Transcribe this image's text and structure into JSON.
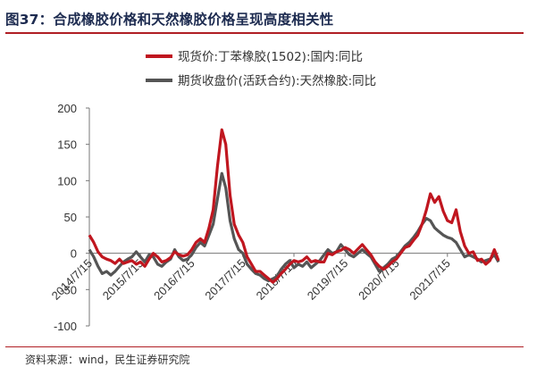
{
  "header": {
    "title": "图37：合成橡胶价格和天然橡胶价格呈现高度相关性"
  },
  "footer": {
    "source": "资料来源：wind，民生证券研究院"
  },
  "colors": {
    "series_1": "#c0161f",
    "series_2": "#555555",
    "accent": "#b01e24"
  },
  "chart_data": {
    "type": "line",
    "title": "",
    "xlabel": "",
    "ylabel": "",
    "ylim": [
      -100,
      200
    ],
    "yticks": [
      -100,
      -50,
      0,
      50,
      100,
      150,
      200
    ],
    "xlim": [
      "2014-07-15",
      "2022-07-15"
    ],
    "xticks": [
      "2014/7/15",
      "2015/7/15",
      "2016/7/15",
      "2017/7/15",
      "2018/7/15",
      "2019/7/15",
      "2020/7/15",
      "2021/7/15"
    ],
    "grid": false,
    "legend_position": "top",
    "series": [
      {
        "name": "现货价:丁苯橡胶(1502):国内:同比",
        "color": "#c0161f",
        "points": [
          [
            "2014-07-15",
            25
          ],
          [
            "2014-08-15",
            15
          ],
          [
            "2014-09-15",
            2
          ],
          [
            "2014-10-15",
            -5
          ],
          [
            "2014-11-15",
            -8
          ],
          [
            "2014-12-15",
            -10
          ],
          [
            "2015-01-15",
            -14
          ],
          [
            "2015-02-15",
            -8
          ],
          [
            "2015-03-15",
            -14
          ],
          [
            "2015-04-15",
            -12
          ],
          [
            "2015-05-15",
            -10
          ],
          [
            "2015-06-15",
            -15
          ],
          [
            "2015-07-15",
            -12
          ],
          [
            "2015-08-15",
            -18
          ],
          [
            "2015-09-15",
            -8
          ],
          [
            "2015-10-15",
            0
          ],
          [
            "2015-11-15",
            -5
          ],
          [
            "2015-12-15",
            -12
          ],
          [
            "2016-01-15",
            -10
          ],
          [
            "2016-02-15",
            -6
          ],
          [
            "2016-03-15",
            2
          ],
          [
            "2016-04-15",
            -2
          ],
          [
            "2016-05-15",
            -4
          ],
          [
            "2016-06-15",
            -2
          ],
          [
            "2016-07-15",
            5
          ],
          [
            "2016-08-15",
            15
          ],
          [
            "2016-09-15",
            20
          ],
          [
            "2016-10-15",
            15
          ],
          [
            "2016-11-15",
            35
          ],
          [
            "2016-12-15",
            60
          ],
          [
            "2017-01-15",
            120
          ],
          [
            "2017-02-15",
            170
          ],
          [
            "2017-03-15",
            150
          ],
          [
            "2017-04-15",
            80
          ],
          [
            "2017-05-15",
            40
          ],
          [
            "2017-06-15",
            25
          ],
          [
            "2017-07-15",
            15
          ],
          [
            "2017-08-15",
            -5
          ],
          [
            "2017-09-15",
            -15
          ],
          [
            "2017-10-15",
            -25
          ],
          [
            "2017-11-15",
            -25
          ],
          [
            "2017-12-15",
            -30
          ],
          [
            "2018-01-15",
            -35
          ],
          [
            "2018-02-15",
            -40
          ],
          [
            "2018-03-15",
            -35
          ],
          [
            "2018-04-15",
            -28
          ],
          [
            "2018-05-15",
            -22
          ],
          [
            "2018-06-15",
            -15
          ],
          [
            "2018-07-15",
            -10
          ],
          [
            "2018-08-15",
            -12
          ],
          [
            "2018-09-15",
            -10
          ],
          [
            "2018-10-15",
            -5
          ],
          [
            "2018-11-15",
            -12
          ],
          [
            "2018-12-15",
            -10
          ],
          [
            "2019-01-15",
            -12
          ],
          [
            "2019-02-15",
            -12
          ],
          [
            "2019-03-15",
            0
          ],
          [
            "2019-04-15",
            -2
          ],
          [
            "2019-05-15",
            2
          ],
          [
            "2019-06-15",
            4
          ],
          [
            "2019-07-15",
            8
          ],
          [
            "2019-08-15",
            5
          ],
          [
            "2019-09-15",
            0
          ],
          [
            "2019-10-15",
            6
          ],
          [
            "2019-11-15",
            12
          ],
          [
            "2019-12-15",
            5
          ],
          [
            "2020-01-15",
            -2
          ],
          [
            "2020-02-15",
            -12
          ],
          [
            "2020-03-15",
            -18
          ],
          [
            "2020-04-15",
            -22
          ],
          [
            "2020-05-15",
            -18
          ],
          [
            "2020-06-15",
            -12
          ],
          [
            "2020-07-15",
            -8
          ],
          [
            "2020-08-15",
            0
          ],
          [
            "2020-09-15",
            8
          ],
          [
            "2020-10-15",
            10
          ],
          [
            "2020-11-15",
            18
          ],
          [
            "2020-12-15",
            25
          ],
          [
            "2021-01-15",
            40
          ],
          [
            "2021-02-15",
            60
          ],
          [
            "2021-03-15",
            82
          ],
          [
            "2021-04-15",
            70
          ],
          [
            "2021-05-15",
            78
          ],
          [
            "2021-06-15",
            58
          ],
          [
            "2021-07-15",
            45
          ],
          [
            "2021-08-15",
            42
          ],
          [
            "2021-09-15",
            60
          ],
          [
            "2021-10-15",
            30
          ],
          [
            "2021-11-15",
            10
          ],
          [
            "2021-12-15",
            0
          ],
          [
            "2022-01-15",
            2
          ],
          [
            "2022-02-15",
            -10
          ],
          [
            "2022-03-15",
            -8
          ],
          [
            "2022-04-15",
            -15
          ],
          [
            "2022-05-15",
            -10
          ],
          [
            "2022-06-15",
            5
          ],
          [
            "2022-07-15",
            -10
          ]
        ]
      },
      {
        "name": "期货收盘价(活跃合约):天然橡胶:同比",
        "color": "#555555",
        "points": [
          [
            "2014-07-15",
            5
          ],
          [
            "2014-08-15",
            -5
          ],
          [
            "2014-09-15",
            -18
          ],
          [
            "2014-10-15",
            -28
          ],
          [
            "2014-11-15",
            -25
          ],
          [
            "2014-12-15",
            -30
          ],
          [
            "2015-01-15",
            -25
          ],
          [
            "2015-02-15",
            -18
          ],
          [
            "2015-03-15",
            -12
          ],
          [
            "2015-04-15",
            -8
          ],
          [
            "2015-05-15",
            -5
          ],
          [
            "2015-06-15",
            2
          ],
          [
            "2015-07-15",
            -5
          ],
          [
            "2015-08-15",
            -12
          ],
          [
            "2015-09-15",
            -2
          ],
          [
            "2015-10-15",
            -5
          ],
          [
            "2015-11-15",
            -15
          ],
          [
            "2015-12-15",
            -18
          ],
          [
            "2016-01-15",
            -12
          ],
          [
            "2016-02-15",
            -8
          ],
          [
            "2016-03-15",
            5
          ],
          [
            "2016-04-15",
            -5
          ],
          [
            "2016-05-15",
            -10
          ],
          [
            "2016-06-15",
            -8
          ],
          [
            "2016-07-15",
            -2
          ],
          [
            "2016-08-15",
            8
          ],
          [
            "2016-09-15",
            15
          ],
          [
            "2016-10-15",
            10
          ],
          [
            "2016-11-15",
            25
          ],
          [
            "2016-12-15",
            40
          ],
          [
            "2017-01-15",
            75
          ],
          [
            "2017-02-15",
            110
          ],
          [
            "2017-03-15",
            90
          ],
          [
            "2017-04-15",
            45
          ],
          [
            "2017-05-15",
            20
          ],
          [
            "2017-06-15",
            5
          ],
          [
            "2017-07-15",
            0
          ],
          [
            "2017-08-15",
            -15
          ],
          [
            "2017-09-15",
            -22
          ],
          [
            "2017-10-15",
            -28
          ],
          [
            "2017-11-15",
            -30
          ],
          [
            "2017-12-15",
            -35
          ],
          [
            "2018-01-15",
            -38
          ],
          [
            "2018-02-15",
            -35
          ],
          [
            "2018-03-15",
            -32
          ],
          [
            "2018-04-15",
            -22
          ],
          [
            "2018-05-15",
            -15
          ],
          [
            "2018-06-15",
            -10
          ],
          [
            "2018-07-15",
            -20
          ],
          [
            "2018-08-15",
            -15
          ],
          [
            "2018-09-15",
            -18
          ],
          [
            "2018-10-15",
            -12
          ],
          [
            "2018-11-15",
            -20
          ],
          [
            "2018-12-15",
            -15
          ],
          [
            "2019-01-15",
            -10
          ],
          [
            "2019-02-15",
            -2
          ],
          [
            "2019-03-15",
            5
          ],
          [
            "2019-04-15",
            0
          ],
          [
            "2019-05-15",
            2
          ],
          [
            "2019-06-15",
            12
          ],
          [
            "2019-07-15",
            5
          ],
          [
            "2019-08-15",
            -2
          ],
          [
            "2019-09-15",
            -5
          ],
          [
            "2019-10-15",
            0
          ],
          [
            "2019-11-15",
            5
          ],
          [
            "2019-12-15",
            0
          ],
          [
            "2020-01-15",
            -5
          ],
          [
            "2020-02-15",
            -15
          ],
          [
            "2020-03-15",
            -25
          ],
          [
            "2020-04-15",
            -20
          ],
          [
            "2020-05-15",
            -15
          ],
          [
            "2020-06-15",
            -8
          ],
          [
            "2020-07-15",
            -5
          ],
          [
            "2020-08-15",
            2
          ],
          [
            "2020-09-15",
            10
          ],
          [
            "2020-10-15",
            15
          ],
          [
            "2020-11-15",
            22
          ],
          [
            "2020-12-15",
            30
          ],
          [
            "2021-01-15",
            40
          ],
          [
            "2021-02-15",
            48
          ],
          [
            "2021-03-15",
            45
          ],
          [
            "2021-04-15",
            35
          ],
          [
            "2021-05-15",
            30
          ],
          [
            "2021-06-15",
            25
          ],
          [
            "2021-07-15",
            22
          ],
          [
            "2021-08-15",
            20
          ],
          [
            "2021-09-15",
            15
          ],
          [
            "2021-10-15",
            5
          ],
          [
            "2021-11-15",
            -5
          ],
          [
            "2021-12-15",
            -2
          ],
          [
            "2022-01-15",
            -5
          ],
          [
            "2022-02-15",
            -8
          ],
          [
            "2022-03-15",
            -12
          ],
          [
            "2022-04-15",
            -10
          ],
          [
            "2022-05-15",
            -8
          ],
          [
            "2022-06-15",
            -2
          ],
          [
            "2022-07-15",
            -12
          ]
        ]
      }
    ]
  }
}
